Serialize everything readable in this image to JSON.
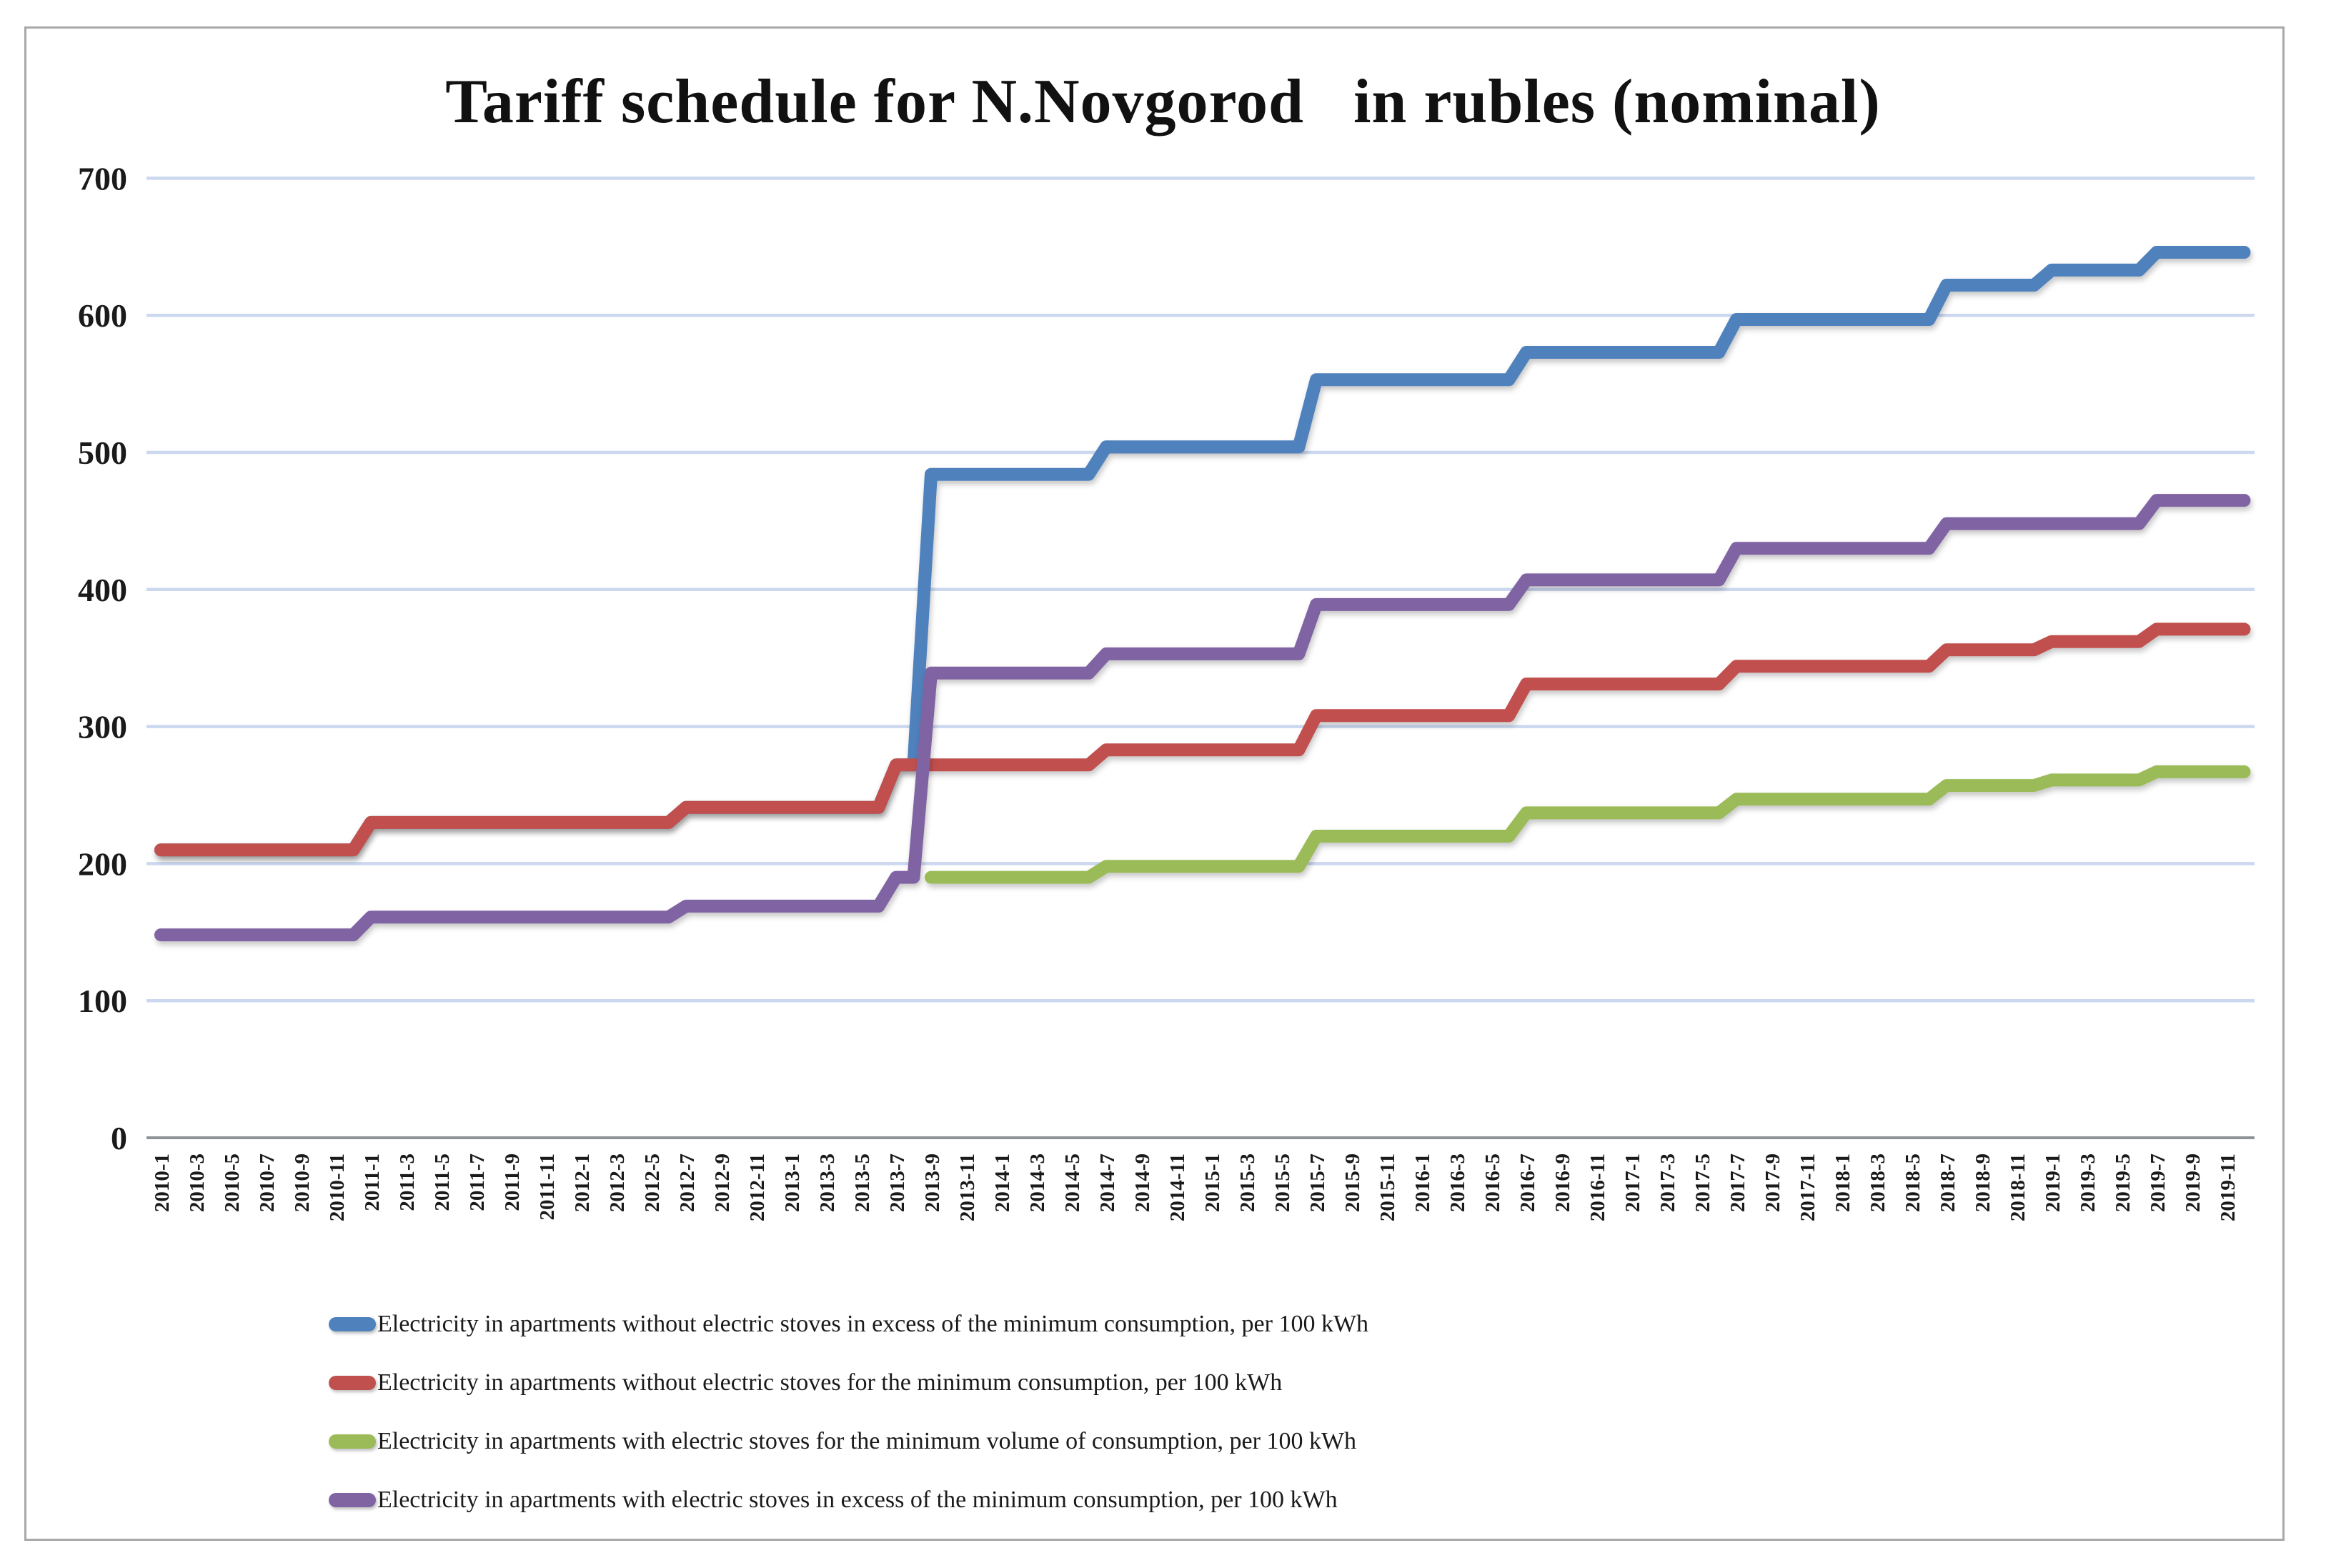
{
  "chart_data": {
    "type": "line",
    "title": "Tariff schedule for N.Novgorod   in rubles (nominal)",
    "legend_position": "bottom",
    "grid": true,
    "x_axis": {
      "months_start": "2010-01",
      "months_end": "2019-12",
      "tick_labels": [
        "2010-1",
        "2010-3",
        "2010-5",
        "2010-7",
        "2010-9",
        "2010-11",
        "2011-1",
        "2011-3",
        "2011-5",
        "2011-7",
        "2011-9",
        "2011-11",
        "2012-1",
        "2012-3",
        "2012-5",
        "2012-7",
        "2012-9",
        "2012-11",
        "2013-1",
        "2013-3",
        "2013-5",
        "2013-7",
        "2013-9",
        "2013-11",
        "2014-1",
        "2014-3",
        "2014-5",
        "2014-7",
        "2014-9",
        "2014-11",
        "2015-1",
        "2015-3",
        "2015-5",
        "2015-7",
        "2015-9",
        "2015-11",
        "2016-1",
        "2016-3",
        "2016-5",
        "2016-7",
        "2016-9",
        "2016-11",
        "2017-1",
        "2017-3",
        "2017-5",
        "2017-7",
        "2017-9",
        "2017-11",
        "2018-1",
        "2018-3",
        "2018-5",
        "2018-7",
        "2018-9",
        "2018-11",
        "2019-1",
        "2019-3",
        "2019-5",
        "2019-7",
        "2019-9",
        "2019-11"
      ]
    },
    "y_axis": {
      "min": 0,
      "max": 700,
      "tick_labels": [
        700,
        600,
        500,
        400,
        300,
        200,
        100,
        0
      ]
    },
    "series": [
      {
        "name": "Electricity in apartments without electric stoves in excess of the minimum consumption, per 100 kWh",
        "color": "#4F81BD",
        "changes": [
          [
            "2010-01",
            210
          ],
          [
            "2011-01",
            230
          ],
          [
            "2012-07",
            241
          ],
          [
            "2013-07",
            272
          ],
          [
            "2013-09",
            484
          ],
          [
            "2014-07",
            504
          ],
          [
            "2015-07",
            553
          ],
          [
            "2016-07",
            573
          ],
          [
            "2017-07",
            597
          ],
          [
            "2018-07",
            622
          ],
          [
            "2019-01",
            633
          ],
          [
            "2019-07",
            646
          ]
        ]
      },
      {
        "name": "Electricity in apartments without electric stoves for the minimum consumption, per 100 kWh",
        "color": "#C0504D",
        "changes": [
          [
            "2010-01",
            210
          ],
          [
            "2011-01",
            230
          ],
          [
            "2012-07",
            241
          ],
          [
            "2013-07",
            272
          ],
          [
            "2014-07",
            283
          ],
          [
            "2015-07",
            308
          ],
          [
            "2016-07",
            331
          ],
          [
            "2017-07",
            344
          ],
          [
            "2018-07",
            356
          ],
          [
            "2019-01",
            362
          ],
          [
            "2019-07",
            371
          ]
        ]
      },
      {
        "name": "Electricity in apartments with electric stoves for the minimum volume of consumption, per 100 kWh",
        "color": "#9BBB59",
        "changes": [
          [
            "2013-09",
            190
          ],
          [
            "2014-07",
            198
          ],
          [
            "2015-07",
            220
          ],
          [
            "2016-07",
            237
          ],
          [
            "2017-07",
            247
          ],
          [
            "2018-07",
            257
          ],
          [
            "2019-01",
            261
          ],
          [
            "2019-07",
            267
          ]
        ]
      },
      {
        "name": "Electricity in apartments with electric stoves in excess of the minimum consumption, per 100 kWh",
        "color": "#8064A2",
        "changes": [
          [
            "2010-01",
            148
          ],
          [
            "2011-01",
            161
          ],
          [
            "2012-07",
            169
          ],
          [
            "2013-07",
            190
          ],
          [
            "2013-09",
            339
          ],
          [
            "2014-07",
            353
          ],
          [
            "2015-07",
            389
          ],
          [
            "2016-07",
            407
          ],
          [
            "2017-07",
            430
          ],
          [
            "2018-07",
            448
          ],
          [
            "2019-07",
            465
          ]
        ]
      }
    ]
  }
}
